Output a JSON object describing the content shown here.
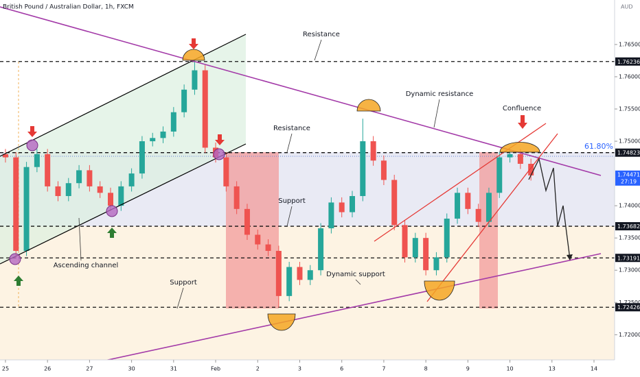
{
  "chart_data": {
    "type": "candlestick",
    "title": "British Pound / Australian Dollar, 1h, FXCM",
    "currency": "AUD",
    "x": [
      0,
      0.25,
      0.5,
      0.75,
      1,
      1.25,
      1.5,
      1.75,
      2,
      2.25,
      2.5,
      2.75,
      3,
      3.25,
      3.5,
      3.75,
      4,
      4.25,
      4.5,
      4.75,
      5,
      5.25,
      5.5,
      5.75,
      6,
      6.25,
      6.5,
      6.75,
      7,
      7.25,
      7.5,
      7.75,
      8,
      8.25,
      8.5,
      8.75,
      9,
      9.25,
      9.5,
      9.75,
      10,
      10.25,
      10.5,
      10.75,
      11,
      11.25,
      11.5,
      11.75,
      12,
      12.25,
      12.5
    ],
    "open": [
      1.748,
      1.7475,
      1.733,
      1.746,
      1.748,
      1.743,
      1.7415,
      1.7435,
      1.7455,
      1.743,
      1.742,
      1.74,
      1.743,
      1.745,
      1.75,
      1.7505,
      1.7515,
      1.7545,
      1.758,
      1.761,
      1.749,
      1.7475,
      1.743,
      1.7395,
      1.7355,
      1.734,
      1.733,
      1.726,
      1.7305,
      1.7285,
      1.73,
      1.7365,
      1.7405,
      1.739,
      1.7415,
      1.75,
      1.747,
      1.744,
      1.737,
      1.732,
      1.735,
      1.73,
      1.732,
      1.738,
      1.742,
      1.7395,
      1.7375,
      1.742,
      1.7475,
      1.748,
      1.7465
    ],
    "high": [
      1.7488,
      1.7483,
      1.7468,
      1.7488,
      1.7488,
      1.7438,
      1.7443,
      1.7463,
      1.7463,
      1.7438,
      1.7428,
      1.7438,
      1.7458,
      1.7508,
      1.7513,
      1.7523,
      1.7553,
      1.7588,
      1.7625,
      1.7618,
      1.7498,
      1.7483,
      1.7438,
      1.7403,
      1.7363,
      1.7348,
      1.7338,
      1.7313,
      1.7313,
      1.7308,
      1.7373,
      1.7413,
      1.7413,
      1.7423,
      1.7535,
      1.7508,
      1.7478,
      1.7448,
      1.7378,
      1.7358,
      1.7358,
      1.7328,
      1.7388,
      1.7428,
      1.7428,
      1.7403,
      1.7428,
      1.7483,
      1.7488,
      1.7488,
      1.7473
    ],
    "low": [
      1.7467,
      1.7318,
      1.7322,
      1.7452,
      1.7422,
      1.7407,
      1.7407,
      1.7427,
      1.7422,
      1.7412,
      1.7392,
      1.7392,
      1.7422,
      1.7442,
      1.7492,
      1.7497,
      1.7507,
      1.7537,
      1.7572,
      1.7482,
      1.7467,
      1.7422,
      1.7387,
      1.7347,
      1.7332,
      1.7322,
      1.7242,
      1.7252,
      1.7277,
      1.7277,
      1.7292,
      1.7357,
      1.7382,
      1.7382,
      1.7407,
      1.7462,
      1.7432,
      1.7362,
      1.7312,
      1.7312,
      1.7292,
      1.7292,
      1.7312,
      1.7372,
      1.7387,
      1.7367,
      1.7367,
      1.7412,
      1.7467,
      1.7457,
      1.7439
    ],
    "close": [
      1.7475,
      1.733,
      1.746,
      1.748,
      1.743,
      1.7415,
      1.7435,
      1.7455,
      1.743,
      1.742,
      1.74,
      1.743,
      1.745,
      1.75,
      1.7505,
      1.7515,
      1.7545,
      1.758,
      1.761,
      1.749,
      1.7475,
      1.743,
      1.7395,
      1.7355,
      1.734,
      1.733,
      1.726,
      1.7305,
      1.7285,
      1.73,
      1.7365,
      1.7405,
      1.739,
      1.7415,
      1.75,
      1.747,
      1.744,
      1.737,
      1.732,
      1.735,
      1.73,
      1.732,
      1.738,
      1.742,
      1.7395,
      1.7375,
      1.742,
      1.7475,
      1.748,
      1.7465,
      1.7447
    ],
    "up_color": "#26a69a",
    "down_color": "#ef5350",
    "xlim": [
      -0.13,
      14.49
    ],
    "ylim": [
      1.7161,
      1.7719
    ],
    "xticks": [
      {
        "value": 0,
        "label": "25"
      },
      {
        "value": 1,
        "label": "26"
      },
      {
        "value": 2,
        "label": "27"
      },
      {
        "value": 3,
        "label": "30"
      },
      {
        "value": 4,
        "label": "31"
      },
      {
        "value": 5,
        "label": "Feb"
      },
      {
        "value": 6,
        "label": "2"
      },
      {
        "value": 7,
        "label": "3"
      },
      {
        "value": 8,
        "label": "6"
      },
      {
        "value": 9,
        "label": "7"
      },
      {
        "value": 10,
        "label": "8"
      },
      {
        "value": 11,
        "label": "9"
      },
      {
        "value": 12,
        "label": "10"
      },
      {
        "value": 13,
        "label": "13"
      },
      {
        "value": 14,
        "label": "14"
      }
    ],
    "yticks": [
      {
        "value": 1.765,
        "label": "1.76500"
      },
      {
        "value": 1.76,
        "label": "1.76000"
      },
      {
        "value": 1.755,
        "label": "1.75500"
      },
      {
        "value": 1.75,
        "label": "1.75000"
      },
      {
        "value": 1.74,
        "label": "1.74000"
      },
      {
        "value": 1.735,
        "label": "1.73500"
      },
      {
        "value": 1.73,
        "label": "1.73000"
      },
      {
        "value": 1.725,
        "label": "1.72500"
      },
      {
        "value": 1.72,
        "label": "1.72000"
      }
    ],
    "price_levels": [
      1.76236,
      1.74823,
      1.73682,
      1.73191,
      1.72426
    ],
    "current_price": 1.74471,
    "countdown": "27:19",
    "fib_label": "61.80%",
    "annotations": [
      "Resistance",
      "Dynamic resistance",
      "Confluence",
      "Resistance",
      "Support",
      "Ascending channel",
      "Dynamic support",
      "Support"
    ]
  }
}
